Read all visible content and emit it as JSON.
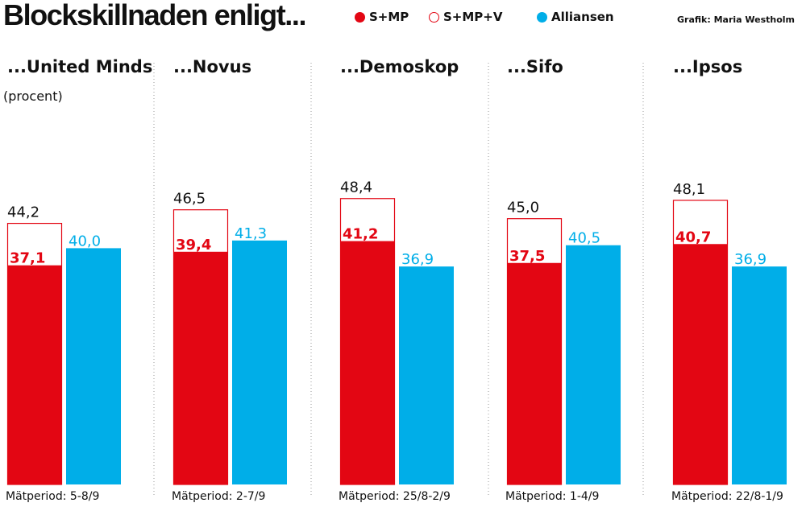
{
  "title": "Blockskillnaden enligt...",
  "credit": "Grafik: Maria Westholm",
  "colors": {
    "smp": "#e30613",
    "outline": "#e30613",
    "alliansen": "#00aee8",
    "divider": "#9a9a9a"
  },
  "legend": [
    {
      "label": "S+MP",
      "style": "filled-red"
    },
    {
      "label": "S+MP+V",
      "style": "outline-red"
    },
    {
      "label": "Alliansen",
      "style": "filled-blue"
    }
  ],
  "chart_data": {
    "type": "bar",
    "unit_label": "(procent)",
    "series": [
      {
        "name": "S+MP"
      },
      {
        "name": "S+MP+V"
      },
      {
        "name": "Alliansen"
      }
    ],
    "ylim": [
      0,
      50
    ],
    "panels": [
      {
        "title": "...United Minds",
        "smp": "37,1",
        "smpv": "44,2",
        "alliansen": "40,0",
        "period": "Mätperiod: 5-8/9"
      },
      {
        "title": "...Novus",
        "smp": "39,4",
        "smpv": "46,5",
        "alliansen": "41,3",
        "period": "Mätperiod: 2-7/9"
      },
      {
        "title": "...Demoskop",
        "smp": "41,2",
        "smpv": "48,4",
        "alliansen": "36,9",
        "period": "Mätperiod: 25/8-2/9"
      },
      {
        "title": "...Sifo",
        "smp": "37,5",
        "smpv": "45,0",
        "alliansen": "40,5",
        "period": "Mätperiod: 1-4/9"
      },
      {
        "title": "...Ipsos",
        "smp": "40,7",
        "smpv": "48,1",
        "alliansen": "36,9",
        "period": "Mätperiod: 22/8-1/9"
      }
    ]
  }
}
